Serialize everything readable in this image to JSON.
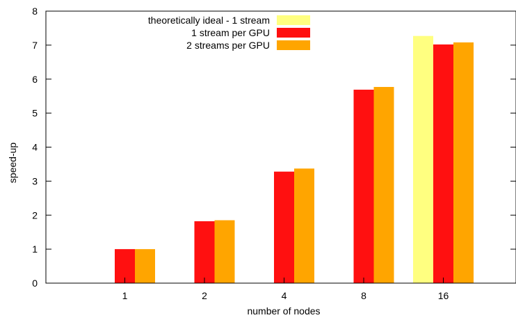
{
  "chart_data": {
    "type": "bar",
    "title": "",
    "xlabel": "number of nodes",
    "ylabel": "speed-up",
    "ylim": [
      0,
      8
    ],
    "yticks": [
      0,
      1,
      2,
      3,
      4,
      5,
      6,
      7,
      8
    ],
    "categories": [
      "1",
      "2",
      "4",
      "8",
      "16"
    ],
    "grid": false,
    "legend_position": "top-left",
    "series": [
      {
        "name": "theoretically ideal - 1 stream",
        "color": "#ffff80",
        "values": [
          null,
          null,
          null,
          null,
          7.27
        ]
      },
      {
        "name": "1 stream per GPU",
        "color": "#ff1010",
        "values": [
          1.0,
          1.82,
          3.28,
          5.69,
          7.02
        ]
      },
      {
        "name": "2 streams per GPU",
        "color": "#ffa500",
        "values": [
          1.0,
          1.85,
          3.37,
          5.77,
          7.08
        ]
      }
    ]
  }
}
